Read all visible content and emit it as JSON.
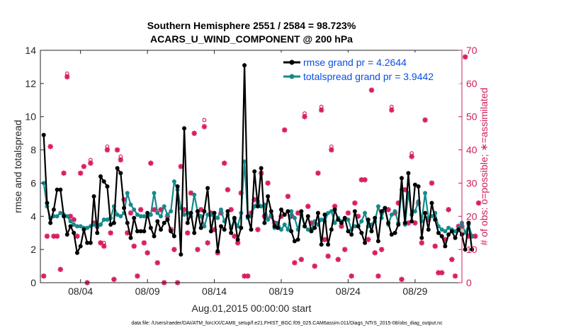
{
  "chart_data": {
    "type": "line",
    "title_line1": "Southern Hemisphere 2551 / 2584 = 98.723%",
    "title_line2": "ACARS_U_WIND_COMPONENT @ 200 hPa",
    "xlabel": "Aug.01,2015 00:00:00 start",
    "ylabel_left": "rmse and totalspread",
    "ylabel_right": "# of obs: o=possible; ∗=assimilated",
    "footer": "data file: /Users/raeder/DAI/ATM_forcXX/CAM6_setup/f.e21.FHIST_BGC.f09_025.CAM6assim.011/Diags_NTrS_2015-08/obs_diag_output.nc",
    "xlim": [
      0,
      31.5
    ],
    "ylim_left": [
      0,
      14
    ],
    "ylim_right": [
      0,
      70
    ],
    "x_ticks": [
      3,
      8,
      13,
      18,
      23,
      28
    ],
    "x_tick_labels": [
      "08/04",
      "08/09",
      "08/14",
      "08/19",
      "08/24",
      "08/29"
    ],
    "y_ticks_left": [
      0,
      2,
      4,
      6,
      8,
      10,
      12,
      14
    ],
    "y_ticks_right": [
      0,
      10,
      20,
      30,
      40,
      50,
      60,
      70
    ],
    "x_step_days": 0.25,
    "colors": {
      "rmse": "#000000",
      "spread": "#158a8c",
      "obs": "#d91e61",
      "legend_text": "#0b4fe0",
      "right_axis": "#d01c5c"
    },
    "series": [
      {
        "name": "rmse grand pr = 4.2644",
        "axis": "left",
        "values": [
          8.9,
          4.8,
          3.6,
          4.4,
          5.6,
          5.6,
          4.0,
          2.9,
          3.4,
          3.0,
          1.8,
          2.2,
          3.2,
          2.4,
          2.4,
          5.2,
          3.0,
          6.4,
          6.1,
          5.8,
          3.5,
          3.6,
          6.9,
          6.6,
          4.5,
          3.6,
          2.7,
          3.9,
          3.1,
          3.1,
          3.1,
          4.2,
          3.3,
          2.8,
          3.7,
          3.2,
          3.6,
          3.8,
          3.1,
          2.8,
          5.8,
          1.7,
          9.3,
          3.6,
          4.2,
          3.0,
          4.3,
          3.3,
          4.3,
          5.7,
          3.1,
          4.2,
          1.9,
          3.4,
          3.2,
          4.3,
          3.0,
          3.9,
          2.6,
          3.3,
          13.1,
          4.0,
          3.2,
          6.7,
          4.6,
          6.9,
          3.6,
          5.2,
          4.3,
          3.4,
          3.3,
          4.4,
          4.1,
          4.3,
          3.1,
          2.5,
          2.6,
          4.3,
          3.4,
          4.0,
          3.1,
          3.3,
          4.2,
          2.3,
          4.1,
          2.3,
          3.2,
          4.4,
          3.8,
          3.6,
          3.9,
          3.1,
          2.9,
          4.3,
          3.4,
          3.0,
          2.4,
          3.8,
          3.1,
          3.9,
          2.5,
          4.3,
          4.5,
          3.6,
          2.9,
          3.0,
          3.5,
          6.3,
          3.6,
          6.6,
          3.7,
          5.9,
          5.8,
          2.7,
          4.2,
          3.2,
          4.8,
          3.8,
          3.0,
          2.8,
          2.2,
          2.9,
          3.1,
          2.7,
          3.2,
          2.9,
          2.0,
          3.6,
          2.0
        ]
      },
      {
        "name": "totalspread grand pr = 3.9442",
        "axis": "left",
        "values": [
          6.0,
          4.6,
          3.9,
          4.0,
          4.0,
          4.2,
          4.1,
          4.0,
          3.7,
          3.5,
          3.4,
          3.4,
          3.3,
          3.3,
          3.4,
          3.5,
          3.4,
          3.5,
          3.8,
          3.8,
          3.9,
          4.6,
          4.1,
          4.0,
          4.2,
          5.4,
          4.7,
          4.4,
          4.1,
          4.0,
          4.0,
          4.0,
          4.1,
          5.4,
          4.2,
          4.0,
          4.6,
          4.1,
          4.3,
          6.1,
          5.6,
          4.5,
          4.1,
          4.2,
          4.0,
          5.3,
          4.3,
          4.0,
          3.4,
          4.1,
          4.1,
          4.0,
          3.9,
          4.4,
          3.7,
          4.1,
          3.3,
          3.8,
          3.4,
          4.2,
          7.3,
          3.9,
          4.0,
          4.6,
          4.9,
          4.6,
          4.7,
          3.8,
          4.1,
          3.3,
          3.6,
          3.2,
          3.5,
          3.2,
          4.3,
          3.9,
          3.2,
          4.1,
          3.4,
          3.2,
          3.2,
          3.7,
          3.5,
          3.8,
          3.7,
          4.2,
          4.3,
          3.6,
          3.9,
          3.7,
          3.8,
          3.8,
          3.2,
          3.4,
          3.4,
          3.7,
          4.2,
          3.4,
          3.5,
          3.7,
          4.6,
          3.9,
          4.5,
          3.5,
          4.1,
          4.3,
          3.6,
          5.6,
          3.5,
          5.4,
          4.1,
          4.3,
          4.9,
          3.7,
          5.4,
          3.9,
          4.0,
          4.2,
          3.4,
          3.2,
          3.1,
          3.3,
          3.2,
          3.1,
          3.3,
          3.6,
          3.0,
          3.5,
          2.8
        ]
      },
      {
        "name": "possible",
        "axis": "right",
        "marker": "circle",
        "values": [
          2,
          14,
          41,
          14,
          14,
          4,
          33,
          63,
          20,
          19,
          14,
          33,
          35,
          0,
          37,
          18,
          17,
          12,
          12,
          41,
          15,
          1,
          40,
          38,
          25,
          15,
          21,
          11,
          2,
          22,
          12,
          9,
          36,
          22,
          6,
          22,
          0,
          20,
          16,
          10,
          0,
          35,
          22,
          15,
          27,
          45,
          10,
          22,
          49,
          12,
          21,
          16,
          9,
          21,
          36,
          28,
          22,
          14,
          12,
          27,
          2,
          2,
          21,
          25,
          16,
          33,
          20,
          30,
          20,
          18,
          17,
          20,
          46,
          26,
          20,
          6,
          21,
          7,
          51,
          23,
          18,
          5,
          33,
          53,
          13,
          8,
          41,
          23,
          7,
          17,
          10,
          21,
          2,
          24,
          20,
          31,
          31,
          13,
          58,
          9,
          2,
          10,
          22,
          22,
          53,
          21,
          24,
          1,
          28,
          18,
          39,
          18,
          24,
          12,
          49,
          19,
          30,
          11,
          3,
          3,
          13,
          22,
          7,
          2,
          17,
          17,
          68,
          14,
          14,
          14,
          24
        ]
      },
      {
        "name": "assimilated",
        "axis": "right",
        "marker": "star",
        "values": [
          2,
          14,
          41,
          14,
          14,
          4,
          33,
          62,
          20,
          19,
          14,
          33,
          35,
          0,
          36,
          18,
          17,
          12,
          11,
          40,
          15,
          1,
          40,
          37,
          25,
          15,
          21,
          11,
          2,
          22,
          12,
          9,
          36,
          22,
          6,
          22,
          0,
          20,
          16,
          10,
          0,
          35,
          22,
          15,
          27,
          45,
          10,
          22,
          47,
          12,
          21,
          16,
          9,
          21,
          36,
          28,
          22,
          14,
          12,
          27,
          2,
          2,
          21,
          25,
          16,
          33,
          20,
          30,
          20,
          18,
          17,
          20,
          46,
          26,
          20,
          6,
          21,
          7,
          50,
          23,
          18,
          5,
          33,
          52,
          13,
          8,
          40,
          23,
          7,
          17,
          10,
          21,
          2,
          24,
          20,
          31,
          31,
          13,
          58,
          9,
          2,
          10,
          22,
          22,
          52,
          21,
          24,
          1,
          28,
          18,
          38,
          18,
          24,
          12,
          49,
          19,
          30,
          11,
          3,
          3,
          13,
          22,
          7,
          2,
          17,
          17,
          68,
          14,
          14,
          14,
          24
        ]
      }
    ]
  }
}
